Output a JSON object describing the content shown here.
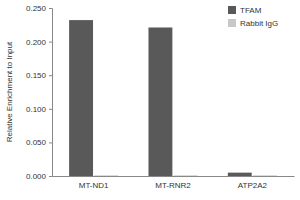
{
  "chart_data": {
    "type": "bar",
    "categories": [
      "MT-ND1",
      "MT-RNR2",
      "ATP2A2"
    ],
    "series": [
      {
        "name": "TFAM",
        "color": "#595959",
        "values": [
          0.232,
          0.221,
          0.005
        ]
      },
      {
        "name": "Rabbit IgG",
        "color": "#c8c8c8",
        "values": [
          0.001,
          0.001,
          0.001
        ]
      }
    ],
    "y_label": "Relative Enrichment to Input",
    "ylim": [
      0,
      0.25
    ],
    "yticks": [
      {
        "value": 0,
        "label": "0.000"
      },
      {
        "value": 0.05,
        "label": "0.050"
      },
      {
        "value": 0.1,
        "label": "0.100"
      },
      {
        "value": 0.15,
        "label": "0.150"
      },
      {
        "value": 0.2,
        "label": "0.200"
      },
      {
        "value": 0.25,
        "label": "0.250"
      }
    ],
    "legend": "top-right"
  }
}
